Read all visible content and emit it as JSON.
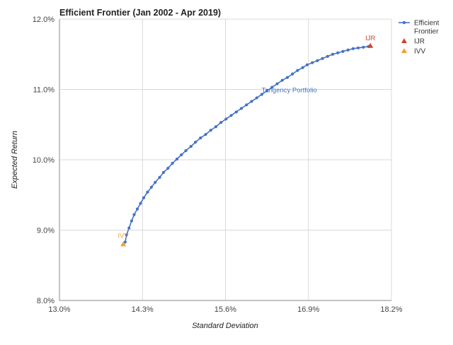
{
  "chart_data": {
    "type": "scatter",
    "title": "Efficient Frontier (Jan 2002 - Apr 2019)",
    "xlabel": "Standard Deviation",
    "ylabel": "Expected Return",
    "xlim": [
      13.0,
      18.2
    ],
    "ylim": [
      8.0,
      12.0
    ],
    "xticks": [
      "13.0%",
      "14.3%",
      "15.6%",
      "16.9%",
      "18.2%"
    ],
    "yticks": [
      "12.0%",
      "11.0%",
      "10.0%",
      "9.0%",
      "8.0%"
    ],
    "grid": true,
    "legend_position": "right",
    "series": [
      {
        "name": "Efficient Frontier",
        "kind": "line-markers",
        "color": "#4472c4",
        "x": [
          14.03,
          14.05,
          14.09,
          14.13,
          14.17,
          14.22,
          14.27,
          14.32,
          14.38,
          14.44,
          14.5,
          14.57,
          14.63,
          14.7,
          14.77,
          14.84,
          14.91,
          14.98,
          15.06,
          15.13,
          15.21,
          15.29,
          15.37,
          15.45,
          15.53,
          15.61,
          15.69,
          15.77,
          15.85,
          15.93,
          16.01,
          16.09,
          16.17,
          16.25,
          16.33,
          16.41,
          16.49,
          16.57,
          16.65,
          16.73,
          16.81,
          16.88,
          16.96,
          17.04,
          17.12,
          17.2,
          17.28,
          17.36,
          17.44,
          17.52,
          17.6,
          17.68,
          17.76,
          17.84
        ],
        "y": [
          8.83,
          8.93,
          9.03,
          9.13,
          9.22,
          9.3,
          9.38,
          9.46,
          9.54,
          9.61,
          9.68,
          9.75,
          9.82,
          9.88,
          9.95,
          10.01,
          10.07,
          10.13,
          10.19,
          10.25,
          10.31,
          10.36,
          10.42,
          10.47,
          10.53,
          10.58,
          10.63,
          10.68,
          10.73,
          10.78,
          10.83,
          10.88,
          10.93,
          10.98,
          11.03,
          11.08,
          11.13,
          11.17,
          11.22,
          11.27,
          11.31,
          11.35,
          11.38,
          11.41,
          11.44,
          11.47,
          11.5,
          11.52,
          11.54,
          11.56,
          11.58,
          11.59,
          11.6,
          11.61
        ]
      },
      {
        "name": "IJR",
        "kind": "triangle",
        "color": "#d0432a",
        "x": [
          17.87
        ],
        "y": [
          11.62
        ]
      },
      {
        "name": "IVV",
        "kind": "triangle",
        "color": "#f0a030",
        "x": [
          14.0
        ],
        "y": [
          8.8
        ]
      }
    ],
    "annotations": [
      {
        "text": "IJR",
        "x": 17.87,
        "y": 11.62,
        "color": "#d0432a"
      },
      {
        "text": "IVV",
        "x": 14.0,
        "y": 8.8,
        "color": "#f0a030"
      },
      {
        "text": "Tangency Portfolio",
        "x": 16.6,
        "y": 11.0,
        "color": "#4472c4"
      }
    ]
  }
}
